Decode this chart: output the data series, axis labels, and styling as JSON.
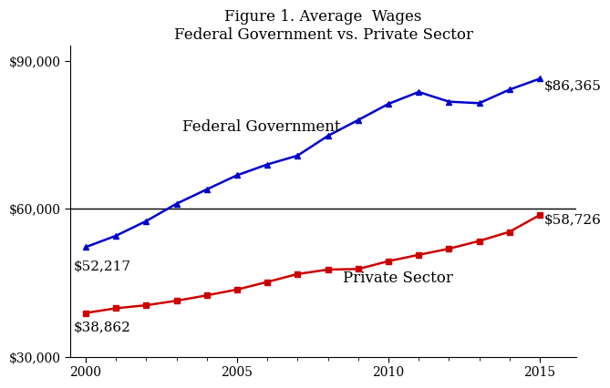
{
  "title_line1": "Figure 1. Average  Wages",
  "title_line2": "Federal Government vs. Private Sector",
  "years": [
    2000,
    2001,
    2002,
    2003,
    2004,
    2005,
    2006,
    2007,
    2008,
    2009,
    2010,
    2011,
    2012,
    2013,
    2014,
    2015
  ],
  "federal": [
    52217,
    54523,
    57499,
    61015,
    63922,
    66791,
    68976,
    70774,
    74773,
    77978,
    81258,
    83679,
    81704,
    81399,
    84153,
    86365
  ],
  "private": [
    38862,
    39813,
    40432,
    41334,
    42434,
    43611,
    45155,
    46756,
    47654,
    47768,
    49363,
    50646,
    51888,
    53462,
    55316,
    58726
  ],
  "federal_color": "#0000CC",
  "private_color": "#CC0000",
  "federal_label": "Federal Government",
  "private_label": "Private Sector",
  "federal_start_label": "$52,217",
  "federal_end_label": "$86,365",
  "private_start_label": "$38,862",
  "private_end_label": "$58,726",
  "ylim": [
    30000,
    93000
  ],
  "yticks": [
    30000,
    60000,
    90000
  ],
  "ytick_labels": [
    "$30,000",
    "$60,000",
    "$90,000"
  ],
  "xlim": [
    1999.5,
    2016.2
  ],
  "xticks": [
    2000,
    2005,
    2010,
    2015
  ],
  "background_color": "#ffffff",
  "title_fontsize": 12,
  "label_fontsize": 12,
  "annotation_fontsize": 11,
  "tick_fontsize": 10
}
